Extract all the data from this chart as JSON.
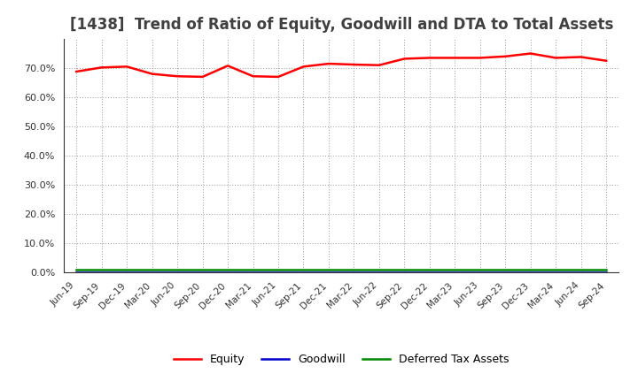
{
  "title": "[1438]  Trend of Ratio of Equity, Goodwill and DTA to Total Assets",
  "x_labels": [
    "Jun-19",
    "Sep-19",
    "Dec-19",
    "Mar-20",
    "Jun-20",
    "Sep-20",
    "Dec-20",
    "Mar-21",
    "Jun-21",
    "Sep-21",
    "Dec-21",
    "Mar-22",
    "Jun-22",
    "Sep-22",
    "Dec-22",
    "Mar-23",
    "Jun-23",
    "Sep-23",
    "Dec-23",
    "Mar-24",
    "Jun-24",
    "Sep-24"
  ],
  "equity": [
    68.8,
    70.2,
    70.5,
    68.0,
    67.2,
    67.0,
    70.8,
    67.2,
    67.0,
    70.5,
    71.5,
    71.2,
    71.0,
    73.2,
    73.5,
    73.5,
    73.5,
    74.0,
    75.0,
    73.5,
    73.8,
    72.5
  ],
  "goodwill": [
    0.0,
    0.0,
    0.0,
    0.0,
    0.0,
    0.0,
    0.0,
    0.0,
    0.0,
    0.0,
    0.0,
    0.0,
    0.0,
    0.0,
    0.0,
    0.0,
    0.0,
    0.0,
    0.0,
    0.0,
    0.0,
    0.0
  ],
  "dta": [
    1.0,
    1.0,
    1.0,
    1.0,
    1.0,
    1.0,
    1.0,
    1.0,
    1.0,
    1.0,
    1.0,
    1.0,
    1.0,
    1.0,
    1.0,
    1.0,
    1.0,
    1.0,
    1.0,
    1.0,
    1.0,
    1.0
  ],
  "equity_color": "#ff0000",
  "goodwill_color": "#0000cc",
  "dta_color": "#008800",
  "ylim": [
    0,
    80
  ],
  "yticks": [
    0,
    10,
    20,
    30,
    40,
    50,
    60,
    70
  ],
  "background_color": "#ffffff",
  "plot_bg_color": "#ffffff",
  "grid_color": "#999999",
  "title_fontsize": 12,
  "title_color": "#404040",
  "legend_labels": [
    "Equity",
    "Goodwill",
    "Deferred Tax Assets"
  ]
}
